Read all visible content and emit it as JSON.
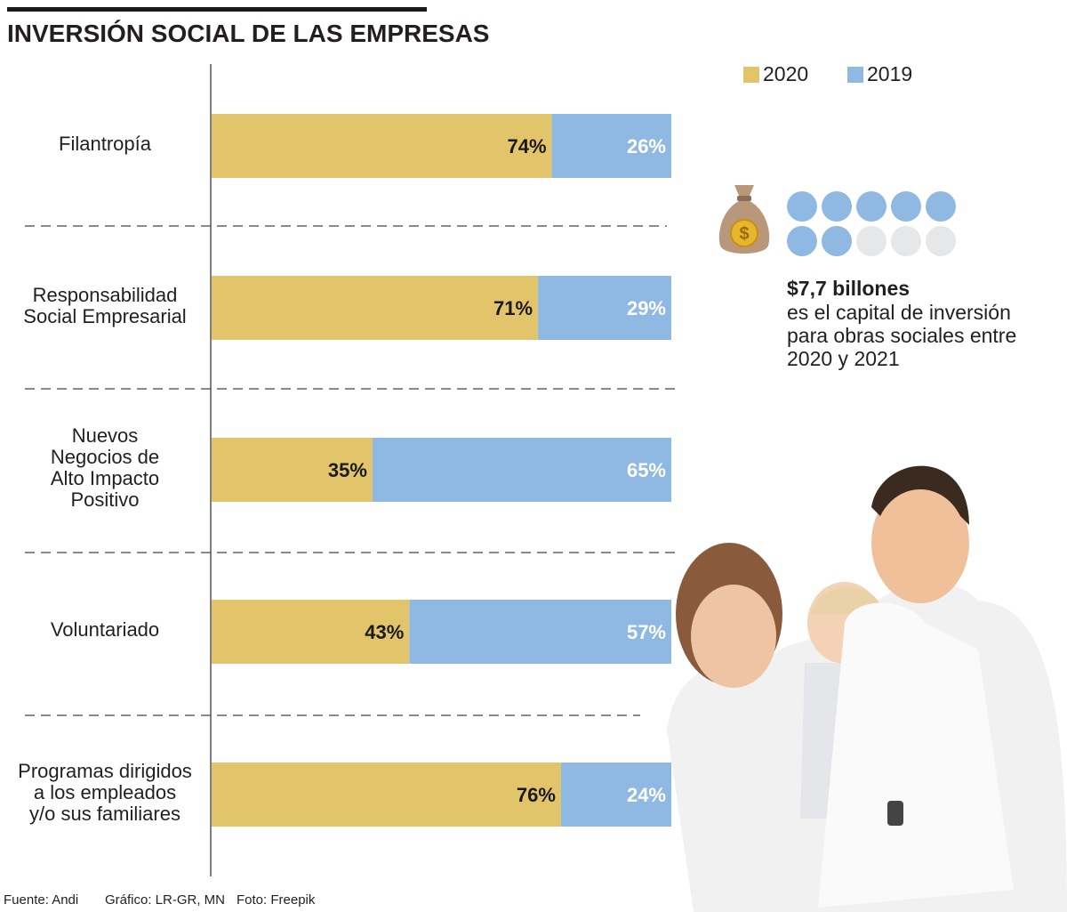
{
  "title": "INVERSIÓN SOCIAL DE LAS EMPRESAS",
  "legend": [
    {
      "label": "2020",
      "color": "#e2c46b"
    },
    {
      "label": "2019",
      "color": "#8fb8e2"
    }
  ],
  "chart_data": {
    "type": "bar",
    "orientation": "horizontal",
    "stacked": true,
    "percent_stacked": true,
    "categories": [
      "Filantropía",
      "Responsabilidad\nSocial Empresarial",
      "Nuevos\nNegocios de\nAlto Impacto\nPositivo",
      "Voluntariado",
      "Programas dirigidos\na los empleados\ny/o sus familiares"
    ],
    "series": [
      {
        "name": "2020",
        "color": "#e2c46b",
        "values": [
          74,
          71,
          35,
          43,
          76
        ],
        "labels": [
          "74%",
          "71%",
          "35%",
          "43%",
          "76%"
        ]
      },
      {
        "name": "2019",
        "color": "#8fb8e2",
        "values": [
          26,
          29,
          65,
          57,
          24
        ],
        "labels": [
          "26%",
          "29%",
          "65%",
          "57%",
          "24%"
        ]
      }
    ],
    "xlim": [
      0,
      100
    ],
    "legend_position": "top-right"
  },
  "coin_indicator": {
    "filled": 7,
    "total": 10,
    "filled_color": "#8fb8e2",
    "empty_color": "#e6e7e9"
  },
  "note": {
    "amount": "$7,7 billones",
    "text": "es el capital de inversión para obras sociales entre 2020 y 2021"
  },
  "icons": {
    "money_bag": "money-bag-icon",
    "photo": "family-photo"
  },
  "footer": {
    "source": "Fuente: Andi",
    "graphic": "Gráfico: LR-GR, MN",
    "photo": "Foto: Freepik"
  }
}
